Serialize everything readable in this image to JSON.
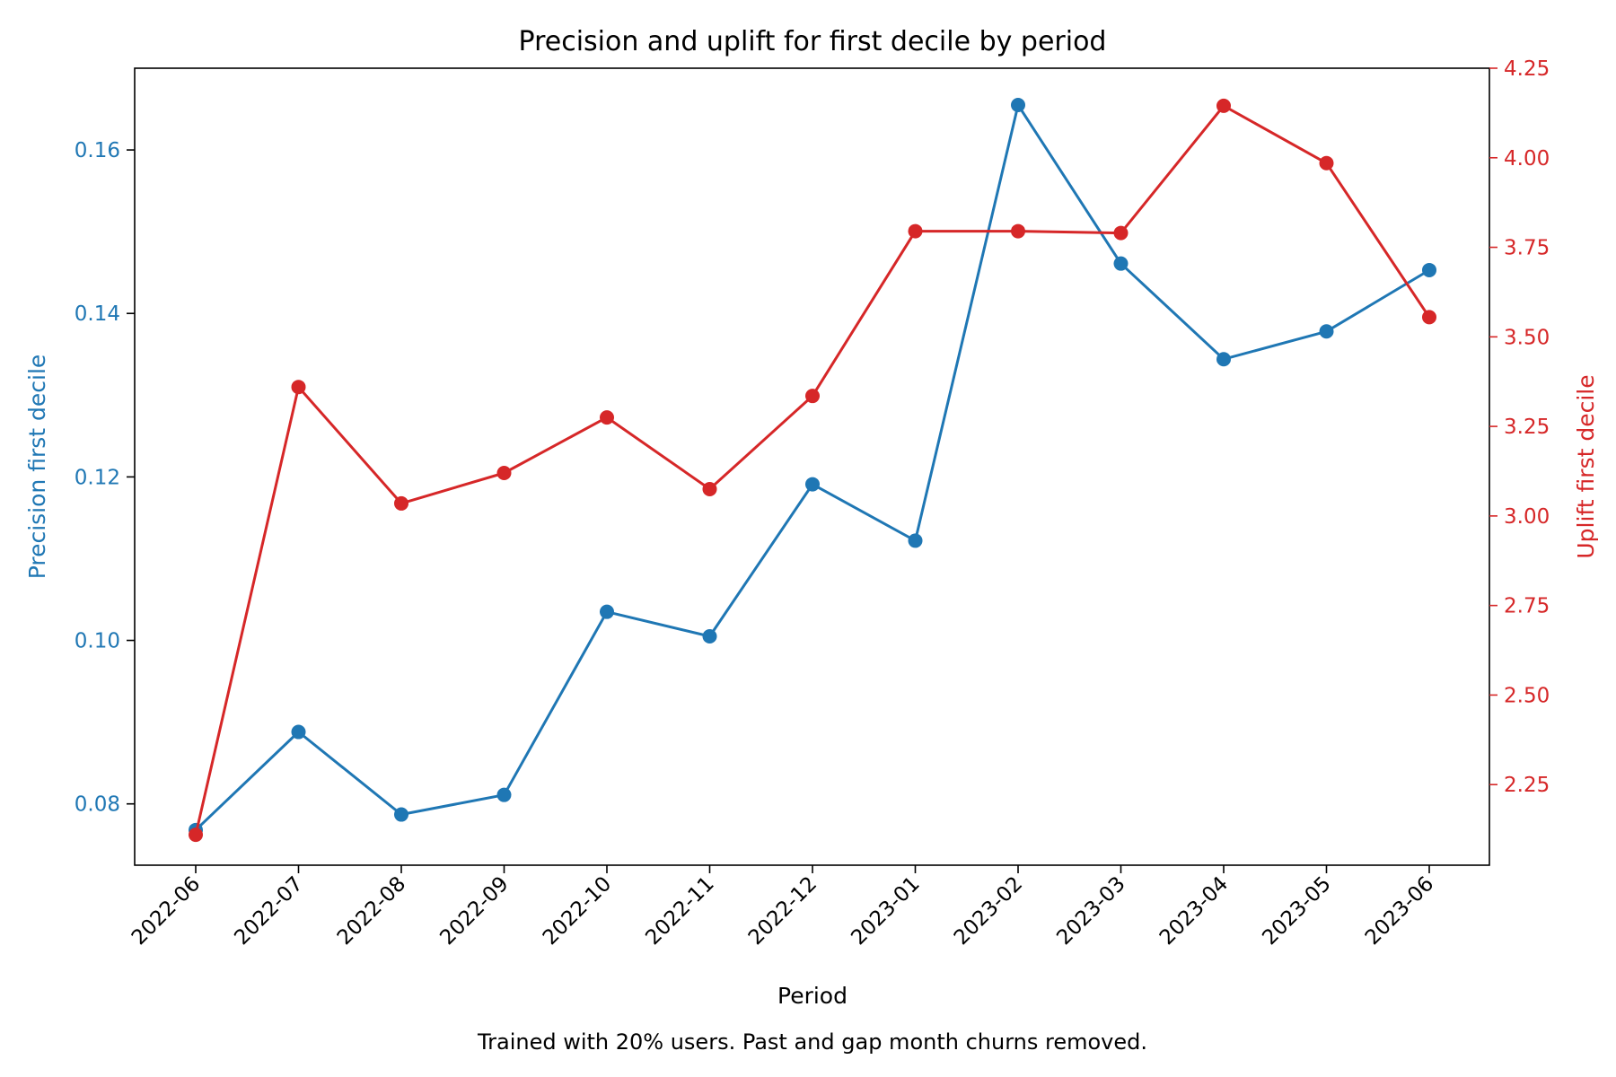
{
  "chart_data": {
    "type": "line",
    "title": "Precision and uplift for first decile by period",
    "xlabel": "Period",
    "caption": "Trained with 20% users. Past and gap month churns removed.",
    "categories": [
      "2022-06",
      "2022-07",
      "2022-08",
      "2022-09",
      "2022-10",
      "2022-11",
      "2022-12",
      "2023-01",
      "2023-02",
      "2023-03",
      "2023-04",
      "2023-05",
      "2023-06"
    ],
    "left_axis": {
      "label": "Precision first decile",
      "color": "#1f77b4",
      "range": [
        0.0725,
        0.17
      ],
      "ticks": [
        0.08,
        0.1,
        0.12,
        0.14,
        0.16
      ],
      "tick_labels": [
        "0.08",
        "0.10",
        "0.12",
        "0.14",
        "0.16"
      ]
    },
    "right_axis": {
      "label": "Uplift first decile",
      "color": "#d62728",
      "range": [
        2.025,
        4.25
      ],
      "ticks": [
        2.25,
        2.5,
        2.75,
        3.0,
        3.25,
        3.5,
        3.75,
        4.0,
        4.25
      ],
      "tick_labels": [
        "2.25",
        "2.50",
        "2.75",
        "3.00",
        "3.25",
        "3.50",
        "3.75",
        "4.00",
        "4.25"
      ]
    },
    "series": [
      {
        "axis": "left",
        "color": "#1f77b4",
        "values": [
          0.0768,
          0.0888,
          0.0787,
          0.0811,
          0.1035,
          0.1005,
          0.1191,
          0.1122,
          0.1655,
          0.1461,
          0.1344,
          0.1378,
          0.1453
        ]
      },
      {
        "axis": "right",
        "color": "#d62728",
        "values": [
          2.11,
          3.36,
          3.035,
          3.12,
          3.275,
          3.075,
          3.335,
          3.795,
          3.795,
          3.79,
          4.145,
          3.985,
          3.555
        ]
      }
    ],
    "grid": false,
    "legend": "none"
  }
}
